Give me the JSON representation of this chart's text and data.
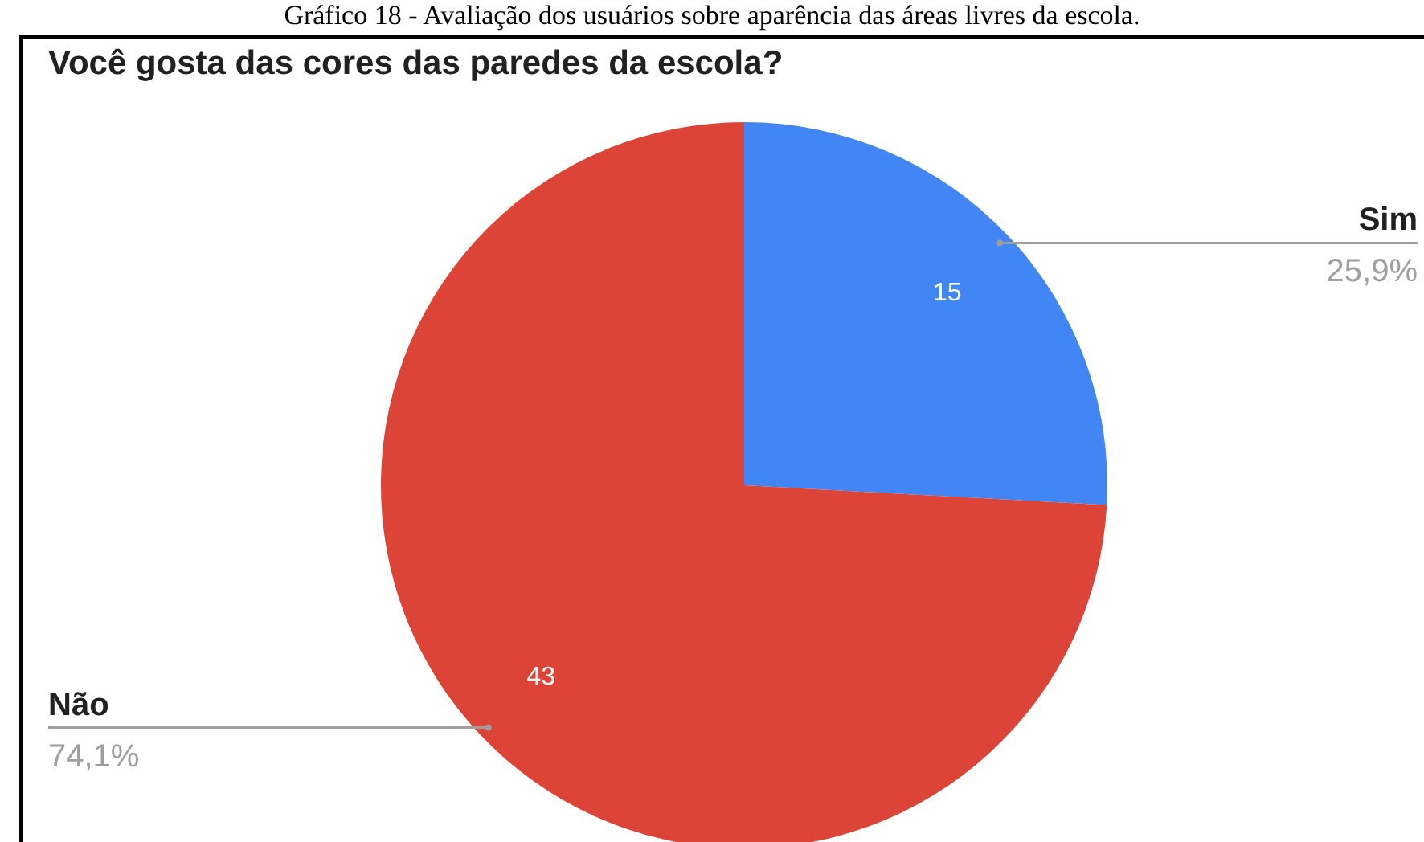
{
  "chart_data": {
    "type": "pie",
    "title": "Você gosta das cores das paredes da escola?",
    "annotations": [
      "Gráfico 18 - Avaliação dos usuários sobre aparência das áreas livres da escola.",
      {
        "text": "25,9%",
        "x": "Sim"
      },
      {
        "text": "74,1%",
        "x": "Não"
      }
    ],
    "categories": [
      "Sim",
      "Não"
    ],
    "values": [
      15,
      43
    ],
    "colors": [
      "#4285f4",
      "#db4437"
    ],
    "value_labels": [
      "15",
      "43"
    ]
  }
}
